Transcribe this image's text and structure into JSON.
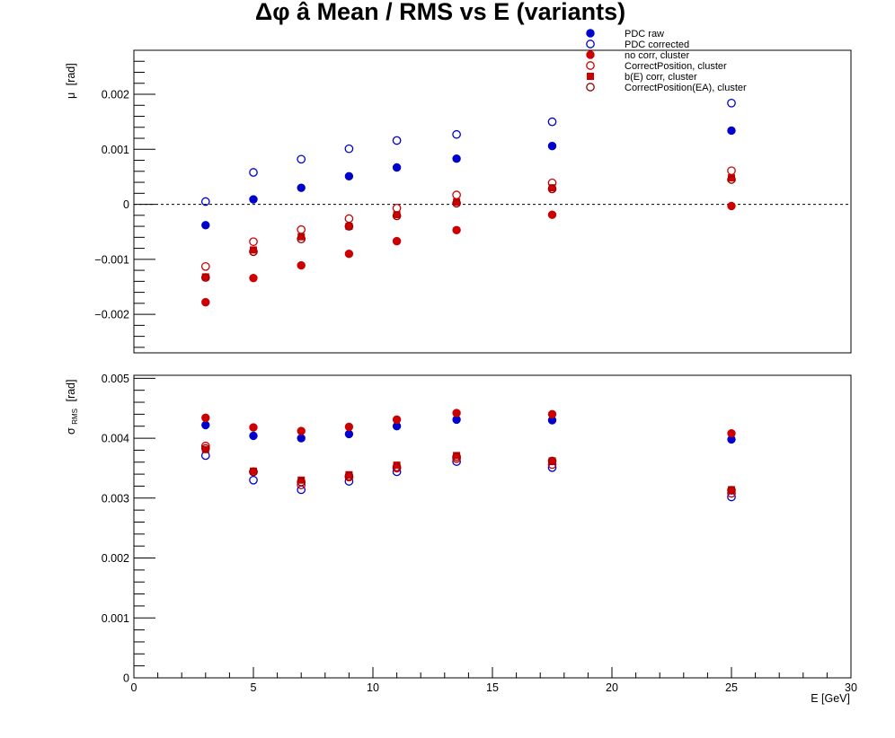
{
  "chart_data": [
    {
      "type": "scatter",
      "title": "Δφ  â  Mean / RMS vs E  (variants)",
      "ylabel_symbol": "μ",
      "ylabel_unit": "[rad]",
      "xlim": [
        0,
        30
      ],
      "ylim": [
        -0.0027,
        0.0028
      ],
      "yticks": [
        -0.002,
        -0.001,
        0,
        0.001,
        0.002
      ],
      "ytick_labels": [
        "−0.002",
        "−0.001",
        "0",
        "0.001",
        "0.002"
      ],
      "zero_line": true,
      "legend_position": "top-right",
      "series": [
        {
          "name": "PDC raw",
          "marker": "circle-filled",
          "color": "#0000cc",
          "x": [
            3,
            5,
            7,
            9,
            11,
            13.5,
            17.5,
            25
          ],
          "y": [
            -0.00038,
            9e-05,
            0.0003,
            0.00051,
            0.00067,
            0.00083,
            0.00106,
            0.00134
          ]
        },
        {
          "name": "PDC corrected",
          "marker": "circle-open",
          "color": "#0000cc",
          "x": [
            3,
            5,
            7,
            9,
            11,
            13.5,
            17.5,
            25
          ],
          "y": [
            5e-05,
            0.00058,
            0.00082,
            0.00101,
            0.00116,
            0.00127,
            0.0015,
            0.00184
          ]
        },
        {
          "name": "no corr, cluster",
          "marker": "circle-filled",
          "color": "#cc0000",
          "x": [
            3,
            5,
            7,
            9,
            11,
            13.5,
            17.5,
            25
          ],
          "y": [
            -0.00178,
            -0.00134,
            -0.00111,
            -0.0009,
            -0.00067,
            -0.00047,
            -0.00019,
            -3e-05
          ]
        },
        {
          "name": "CorrectPosition, cluster",
          "marker": "circle-open",
          "color": "#cc0000",
          "x": [
            3,
            5,
            7,
            9,
            11,
            13.5,
            17.5,
            25
          ],
          "y": [
            -0.00113,
            -0.00068,
            -0.00046,
            -0.00026,
            -7e-05,
            0.00017,
            0.00039,
            0.00061
          ]
        },
        {
          "name": "b(E) corr, cluster",
          "marker": "square-filled",
          "color": "#cc0000",
          "x": [
            3,
            5,
            7,
            9,
            11,
            13.5,
            17.5,
            25
          ],
          "y": [
            -0.00132,
            -0.00083,
            -0.00059,
            -0.0004,
            -0.00019,
            4e-05,
            0.0003,
            0.00048
          ]
        },
        {
          "name": "CorrectPosition(EA), cluster",
          "marker": "circle-open",
          "color": "#990000",
          "x": [
            3,
            5,
            7,
            9,
            11,
            13.5,
            17.5,
            25
          ],
          "y": [
            -0.00133,
            -0.00086,
            -0.00063,
            -0.0004,
            -0.00021,
            2e-05,
            0.00028,
            0.00045
          ]
        }
      ]
    },
    {
      "type": "scatter",
      "ylabel_symbol": "σ",
      "ylabel_sub": "RMS",
      "ylabel_unit": "[rad]",
      "xlabel": "E  [GeV]",
      "xlim": [
        0,
        30
      ],
      "xticks": [
        0,
        5,
        10,
        15,
        20,
        25,
        30
      ],
      "xtick_labels": [
        "0",
        "5",
        "10",
        "15",
        "20",
        "25",
        "30"
      ],
      "ylim": [
        0,
        0.00505
      ],
      "yticks": [
        0,
        0.001,
        0.002,
        0.003,
        0.004,
        0.005
      ],
      "ytick_labels": [
        "0",
        "0.001",
        "0.002",
        "0.003",
        "0.004",
        "0.005"
      ],
      "series": [
        {
          "name": "PDC raw",
          "marker": "circle-filled",
          "color": "#0000cc",
          "x": [
            3,
            5,
            7,
            9,
            11,
            13.5,
            17.5,
            25
          ],
          "y": [
            0.00422,
            0.00404,
            0.004,
            0.00407,
            0.0042,
            0.00431,
            0.0043,
            0.00398
          ]
        },
        {
          "name": "PDC corrected",
          "marker": "circle-open",
          "color": "#0000cc",
          "x": [
            3,
            5,
            7,
            9,
            11,
            13.5,
            17.5,
            25
          ],
          "y": [
            0.00371,
            0.0033,
            0.00314,
            0.00328,
            0.00344,
            0.00361,
            0.00351,
            0.00302
          ]
        },
        {
          "name": "no corr, cluster",
          "marker": "circle-filled",
          "color": "#cc0000",
          "x": [
            3,
            5,
            7,
            9,
            11,
            13.5,
            17.5,
            25
          ],
          "y": [
            0.00434,
            0.00418,
            0.00412,
            0.00419,
            0.00431,
            0.00442,
            0.0044,
            0.00408
          ]
        },
        {
          "name": "CorrectPosition, cluster",
          "marker": "circle-open",
          "color": "#cc0000",
          "x": [
            3,
            5,
            7,
            9,
            11,
            13.5,
            17.5,
            25
          ],
          "y": [
            0.00387,
            0.00344,
            0.00322,
            0.00335,
            0.0035,
            0.00366,
            0.00356,
            0.00308
          ]
        },
        {
          "name": "b(E) corr, cluster",
          "marker": "square-filled",
          "color": "#cc0000",
          "x": [
            3,
            5,
            7,
            9,
            11,
            13.5,
            17.5,
            25
          ],
          "y": [
            0.00381,
            0.00345,
            0.0033,
            0.00339,
            0.00355,
            0.00371,
            0.00362,
            0.00314
          ]
        },
        {
          "name": "CorrectPosition(EA), cluster",
          "marker": "circle-open",
          "color": "#990000",
          "x": [
            3,
            5,
            7,
            9,
            11,
            13.5,
            17.5,
            25
          ],
          "y": [
            0.00383,
            0.00344,
            0.00327,
            0.00337,
            0.00352,
            0.00369,
            0.00362,
            0.00313
          ]
        }
      ]
    }
  ]
}
